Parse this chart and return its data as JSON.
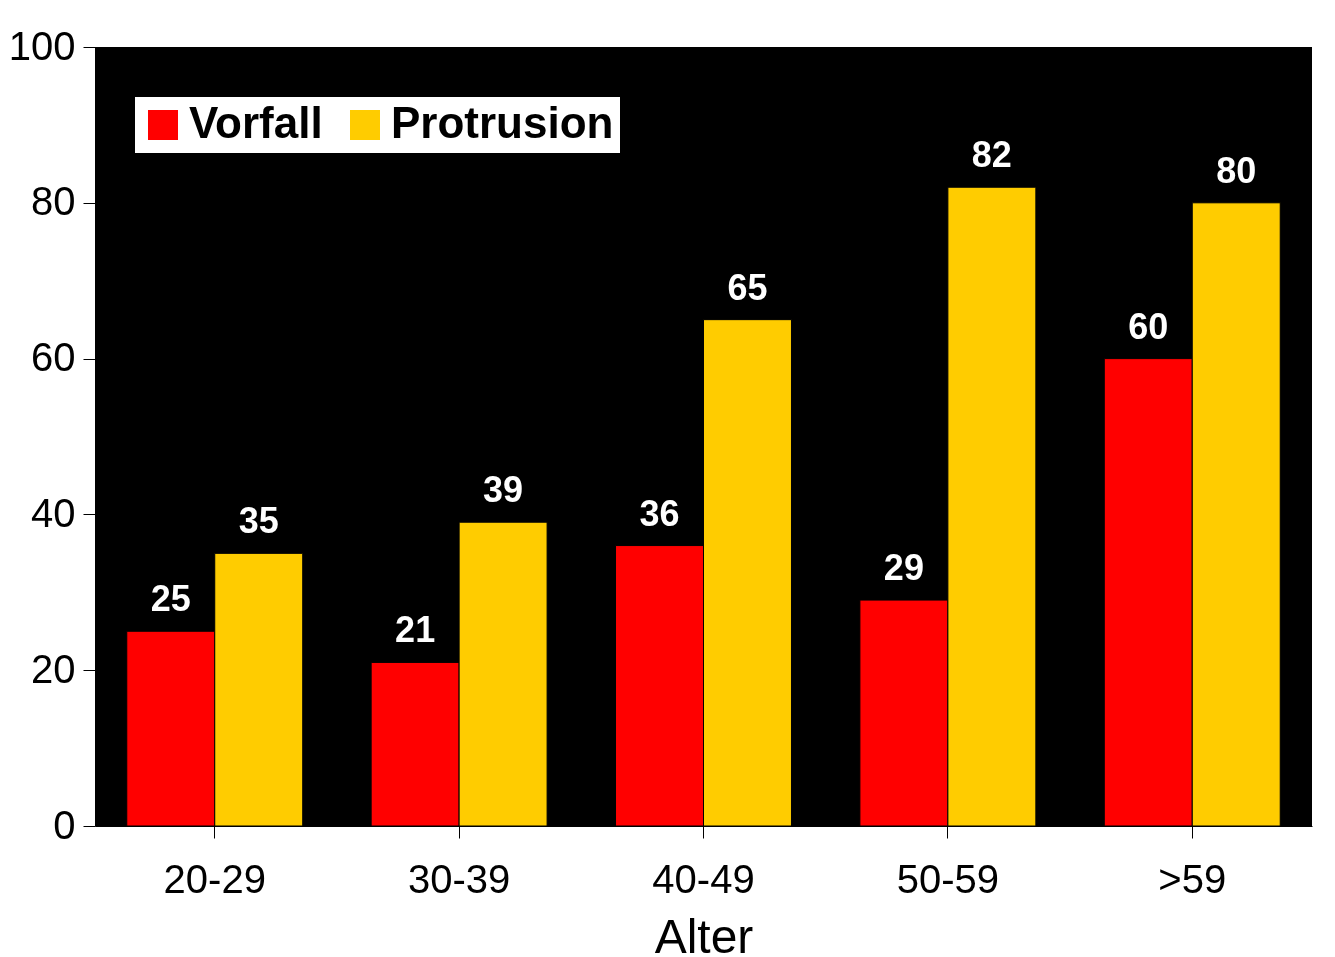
{
  "chart_data": {
    "type": "bar",
    "xlabel": "Alter",
    "categories": [
      "20-29",
      "30-39",
      "40-49",
      "50-59",
      ">59"
    ],
    "series": [
      {
        "name": "Vorfall",
        "color": "#ff0000",
        "values": [
          25,
          21,
          36,
          29,
          60
        ]
      },
      {
        "name": "Protrusion",
        "color": "#ffcc00",
        "values": [
          35,
          39,
          65,
          82,
          80
        ]
      }
    ],
    "ylim": [
      0,
      100
    ],
    "yticks": [
      0,
      20,
      40,
      60,
      80,
      100
    ],
    "data_labels": true,
    "legend": "top left",
    "grid": false
  }
}
